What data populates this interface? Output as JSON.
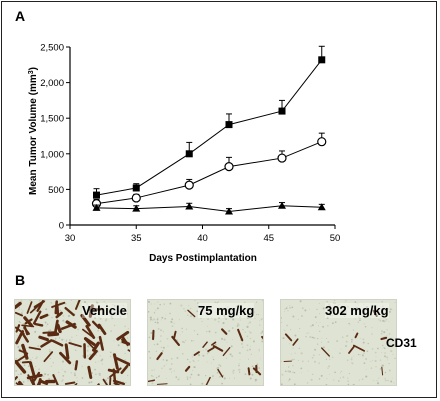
{
  "panel_a_label": "A",
  "panel_b_label": "B",
  "chart_data": {
    "type": "line",
    "xlabel": "Days Postimplantation",
    "ylabel": "Mean Tumor Volume (mm",
    "ylabel_sup": "3",
    "ylabel_close": ")",
    "xlim": [
      30,
      50
    ],
    "ylim": [
      0,
      2500
    ],
    "x_ticks": [
      "30",
      "35",
      "40",
      "45",
      "50"
    ],
    "y_ticks": [
      "0",
      "500",
      "1,000",
      "1,500",
      "2,000",
      "2,500"
    ],
    "grid": false,
    "series": [
      {
        "marker": "filled-square",
        "x": [
          32,
          35,
          39,
          42,
          46,
          49
        ],
        "y": [
          420,
          520,
          1000,
          1410,
          1600,
          2320
        ],
        "err": [
          90,
          60,
          160,
          150,
          150,
          190
        ]
      },
      {
        "marker": "open-circle",
        "x": [
          32,
          35,
          39,
          42,
          46,
          49
        ],
        "y": [
          300,
          380,
          560,
          820,
          940,
          1170
        ],
        "err": [
          60,
          50,
          80,
          130,
          100,
          120
        ]
      },
      {
        "marker": "filled-triangle",
        "x": [
          32,
          35,
          39,
          42,
          46,
          49
        ],
        "y": [
          240,
          230,
          260,
          190,
          270,
          250
        ],
        "err": [
          40,
          40,
          45,
          40,
          45,
          40
        ]
      }
    ]
  },
  "micrographs": [
    {
      "label": "Vehicle",
      "density": "high"
    },
    {
      "label": "75 mg/kg",
      "density": "medium"
    },
    {
      "label": "302 mg/kg",
      "density": "low"
    }
  ],
  "stain_label": "CD31",
  "colors": {
    "stain": "#5a2a12",
    "tissue": "#dfe3d3",
    "axis": "#000000"
  }
}
